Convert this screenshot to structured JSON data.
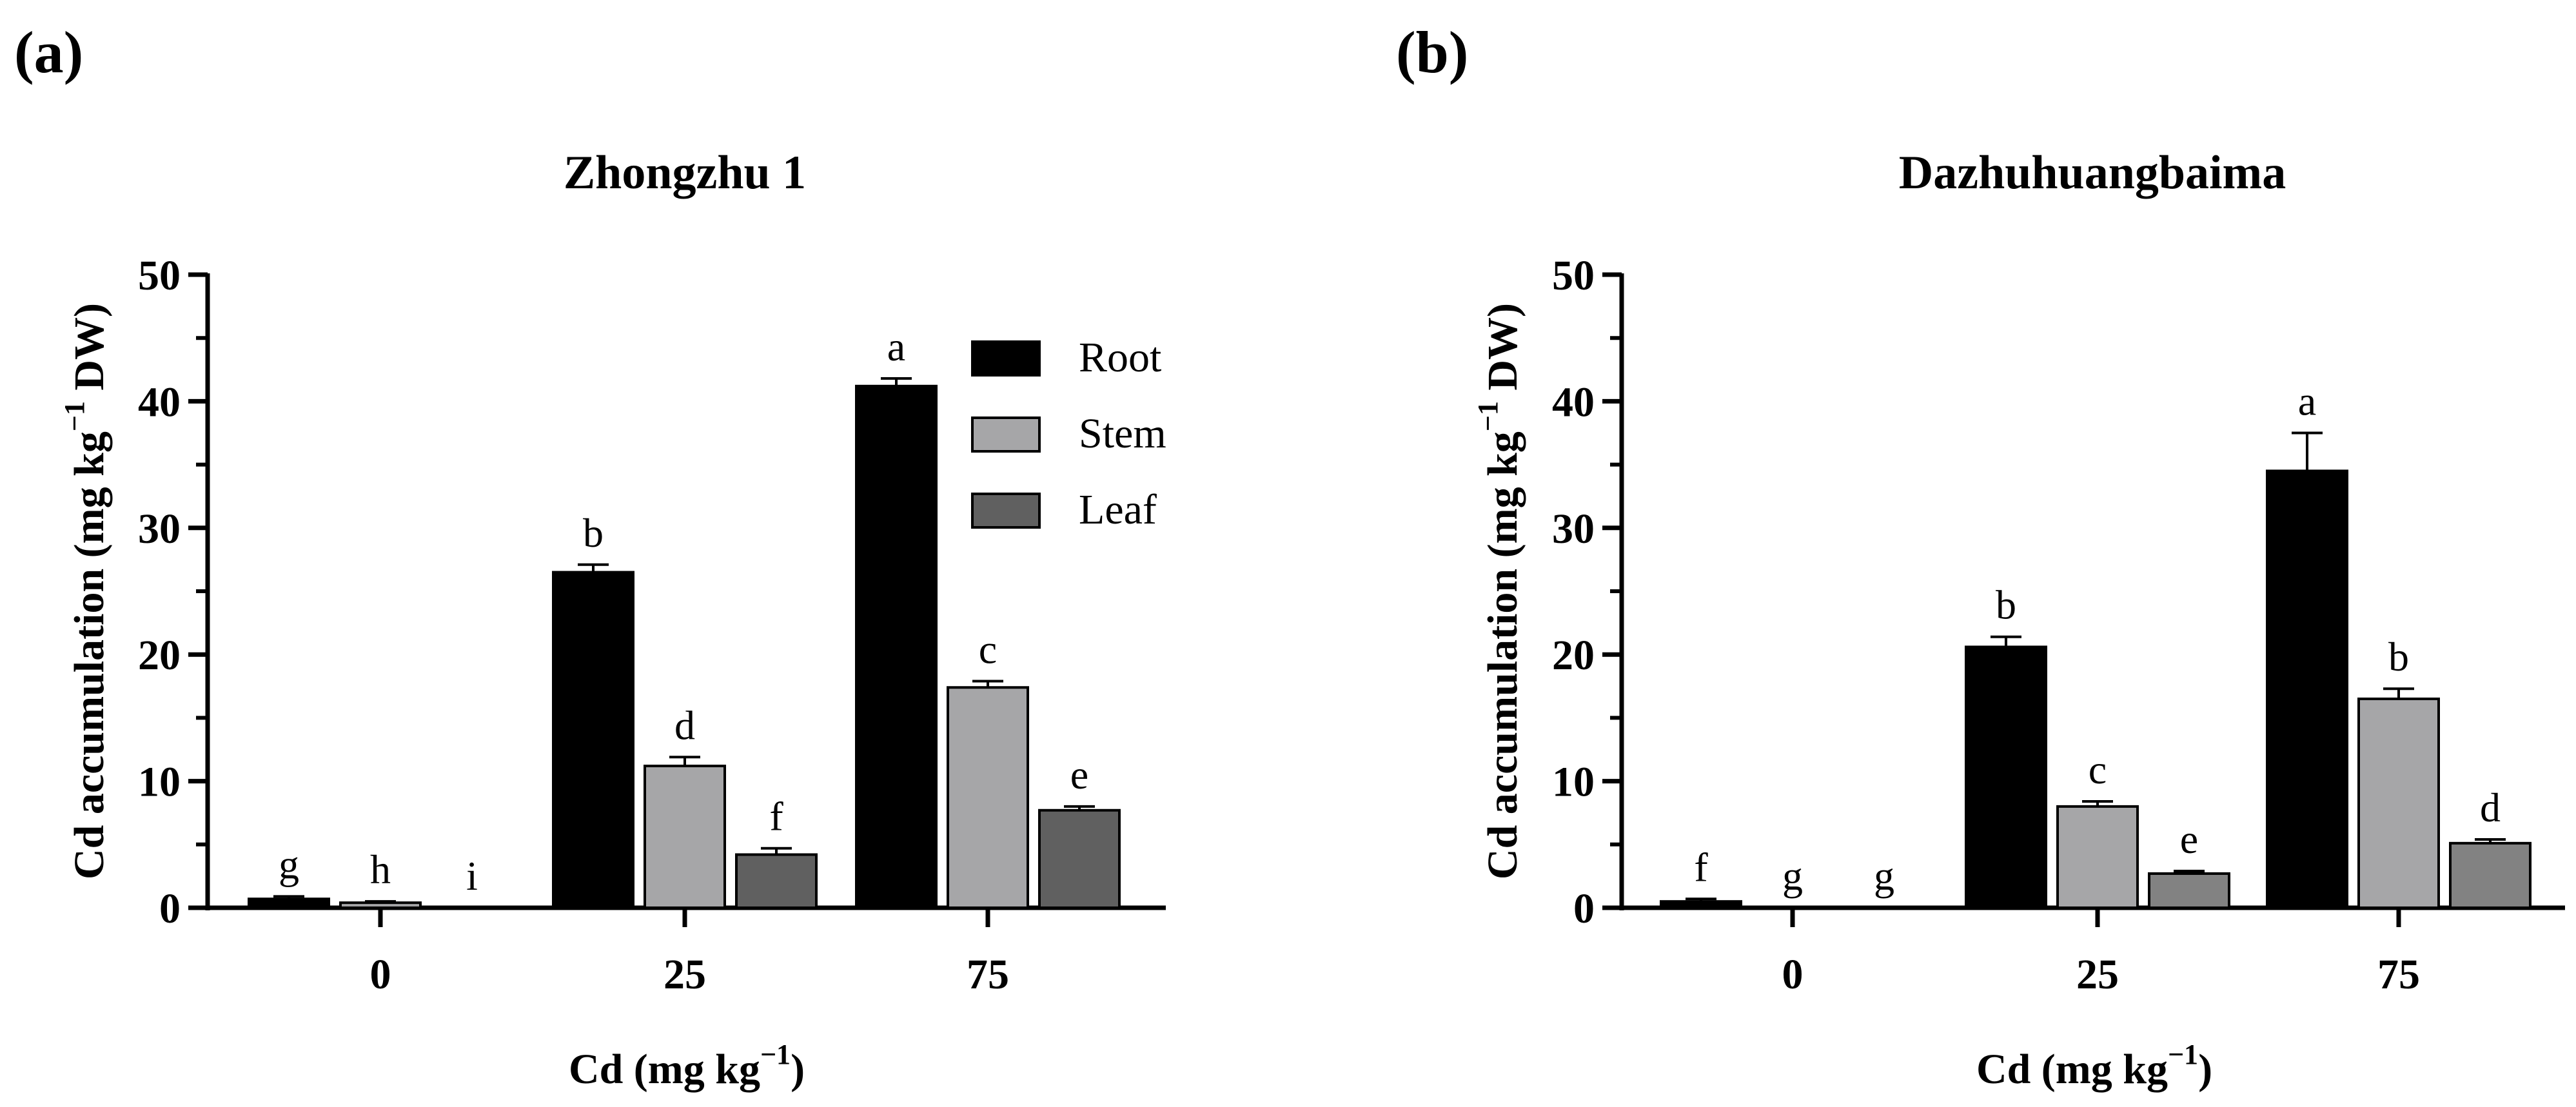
{
  "figure": {
    "panels": [
      "(a)",
      "(b)"
    ]
  },
  "chart_data": [
    {
      "type": "bar",
      "title": "Zhongzhu 1",
      "xlabel": "Cd (mg kg",
      "xlabel_sup": "−1",
      "xlabel_close": ")",
      "ylabel": "Cd accumulation (mg  kg",
      "ylabel_sup": "−1",
      "ylabel_tail": " DW)",
      "ylim": [
        0,
        50
      ],
      "yticks": [
        "0",
        "10",
        "20",
        "30",
        "40",
        "50"
      ],
      "categories": [
        "0",
        "25",
        "75"
      ],
      "legend_position": "top-right",
      "series": [
        {
          "name": "Root",
          "color": "#000000",
          "values": [
            0.7,
            26.5,
            41.2
          ],
          "errors": [
            0.2,
            0.6,
            0.6
          ],
          "letters": [
            "g",
            "b",
            "a"
          ]
        },
        {
          "name": "Stem",
          "color": "#a6a6a8",
          "values": [
            0.4,
            11.2,
            17.4
          ],
          "errors": [
            0.1,
            0.7,
            0.5
          ],
          "letters": [
            "h",
            "d",
            "c"
          ]
        },
        {
          "name": "Leaf",
          "color": "#606060",
          "values": [
            0.0,
            4.2,
            7.7
          ],
          "errors": [
            0.0,
            0.5,
            0.3
          ],
          "letters": [
            "i",
            "f",
            "e"
          ]
        }
      ]
    },
    {
      "type": "bar",
      "title": "Dazhuhuangbaima",
      "xlabel": "Cd (mg kg",
      "xlabel_sup": "−1",
      "xlabel_close": ")",
      "ylabel": "Cd accumulation (mg  kg",
      "ylabel_sup": "−1",
      "ylabel_tail": " DW)",
      "ylim": [
        0,
        50
      ],
      "yticks": [
        "0",
        "10",
        "20",
        "30",
        "40",
        "50"
      ],
      "categories": [
        "0",
        "25",
        "75"
      ],
      "series": [
        {
          "name": "Root",
          "color": "#000000",
          "values": [
            0.5,
            20.6,
            34.5
          ],
          "errors": [
            0.2,
            0.8,
            3.0
          ],
          "letters": [
            "f",
            "b",
            "a"
          ]
        },
        {
          "name": "Stem",
          "color": "#a6a6a8",
          "values": [
            0.0,
            8.0,
            16.5
          ],
          "errors": [
            0.0,
            0.4,
            0.8
          ],
          "letters": [
            "g",
            "c",
            "b"
          ]
        },
        {
          "name": "Leaf",
          "color": "#828282",
          "values": [
            0.0,
            2.7,
            5.1
          ],
          "errors": [
            0.0,
            0.2,
            0.3
          ],
          "letters": [
            "g",
            "e",
            "d"
          ]
        }
      ]
    }
  ]
}
